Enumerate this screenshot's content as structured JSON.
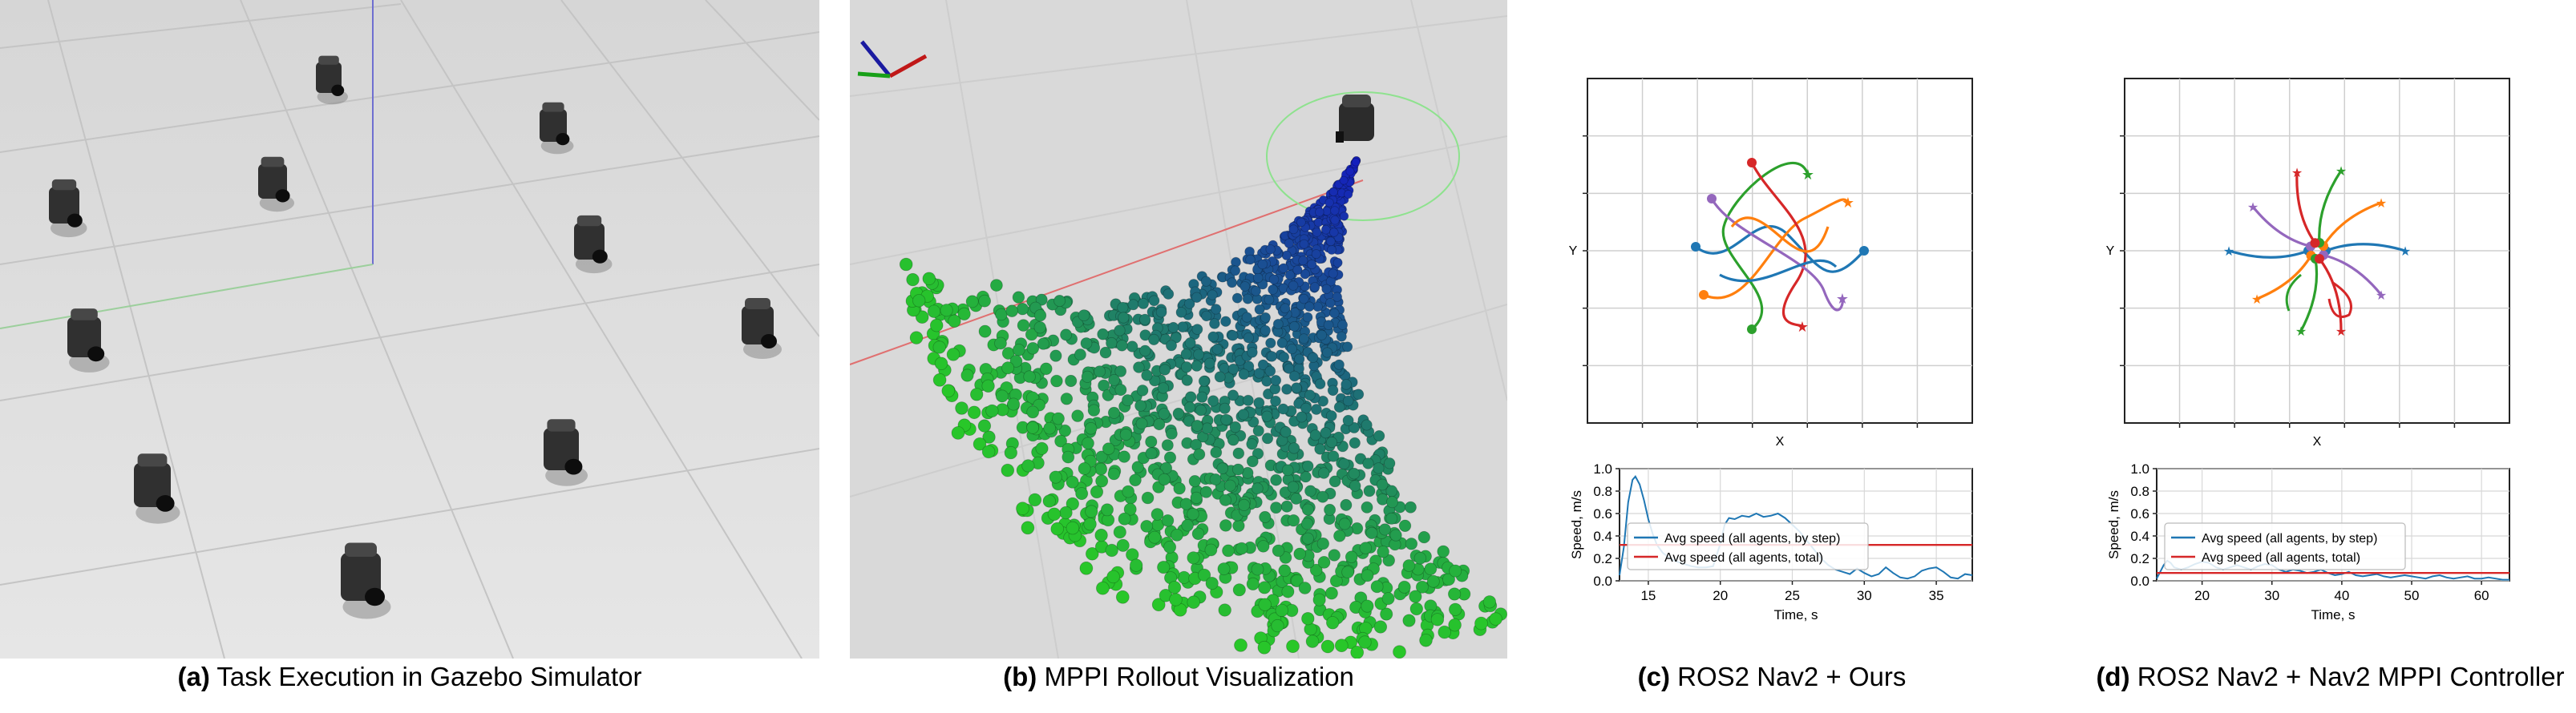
{
  "captions": {
    "a": {
      "tag": "(a)",
      "text": "Task Execution in Gazebo Simulator"
    },
    "b": {
      "tag": "(b)",
      "text": "MPPI Rollout Visualization"
    },
    "c": {
      "tag": "(c)",
      "text": "ROS2 Nav2 + Ours"
    },
    "d": {
      "tag": "(d)",
      "text": "ROS2 Nav2 + Nav2 MPPI Controller"
    }
  },
  "colors": {
    "blue": "#1f77b4",
    "orange": "#ff7f0e",
    "green": "#2ca02c",
    "red": "#d62728",
    "purple": "#9467bd",
    "gazebo_floor": "#dcdcdc",
    "rviz_bg": "#d9d9d9"
  },
  "chart_data": [
    {
      "type": "line",
      "panel": "c",
      "xlabel": "Time, s",
      "ylabel": "Speed, m/s",
      "xlim": [
        13,
        37.5
      ],
      "ylim": [
        0,
        1.0
      ],
      "xticks": [
        "15",
        "20",
        "25",
        "30",
        "35"
      ],
      "xtick_values": [
        15,
        20,
        25,
        30,
        35
      ],
      "yticks": [
        "0.0",
        "0.2",
        "0.4",
        "0.6",
        "0.8",
        "1.0"
      ],
      "ytick_values": [
        0,
        0.2,
        0.4,
        0.6,
        0.8,
        1.0
      ],
      "grid": true,
      "legend": "center-left",
      "series": [
        {
          "name": "Avg speed (all agents, by step)",
          "color": "#1f77b4",
          "x": [
            13,
            13.3,
            13.6,
            13.9,
            14.1,
            14.4,
            14.7,
            15.0,
            15.3,
            15.6,
            16.0,
            16.5,
            17.0,
            17.5,
            18.0,
            18.5,
            19.0,
            19.5,
            20.0,
            20.3,
            20.6,
            21.0,
            21.5,
            22.0,
            22.5,
            23.0,
            23.5,
            24.0,
            24.5,
            25.0,
            25.5,
            26.0,
            26.5,
            27.0,
            27.5,
            28.0,
            28.5,
            29.0,
            29.5,
            30.0,
            30.5,
            31.0,
            31.5,
            32.0,
            32.5,
            33.0,
            33.5,
            34.0,
            34.5,
            35.0,
            35.5,
            36.0,
            36.5,
            37.0,
            37.5
          ],
          "y": [
            0.05,
            0.3,
            0.7,
            0.9,
            0.93,
            0.86,
            0.72,
            0.55,
            0.42,
            0.32,
            0.25,
            0.2,
            0.17,
            0.15,
            0.13,
            0.12,
            0.12,
            0.13,
            0.33,
            0.5,
            0.56,
            0.55,
            0.58,
            0.57,
            0.6,
            0.57,
            0.58,
            0.6,
            0.56,
            0.5,
            0.44,
            0.36,
            0.28,
            0.2,
            0.14,
            0.1,
            0.08,
            0.06,
            0.11,
            0.07,
            0.04,
            0.06,
            0.12,
            0.07,
            0.03,
            0.02,
            0.04,
            0.09,
            0.11,
            0.12,
            0.08,
            0.03,
            0.02,
            0.06,
            0.05
          ]
        },
        {
          "name": "Avg speed (all agents, total)",
          "color": "#d62728",
          "x": [
            13,
            37.5
          ],
          "y": [
            0.32,
            0.32
          ]
        }
      ]
    },
    {
      "type": "line",
      "panel": "d",
      "xlabel": "Time, s",
      "ylabel": "Speed, m/s",
      "xlim": [
        13.5,
        64
      ],
      "ylim": [
        0,
        1.0
      ],
      "xticks": [
        "20",
        "30",
        "40",
        "50",
        "60"
      ],
      "xtick_values": [
        20,
        30,
        40,
        50,
        60
      ],
      "yticks": [
        "0.0",
        "0.2",
        "0.4",
        "0.6",
        "0.8",
        "1.0"
      ],
      "ytick_values": [
        0,
        0.2,
        0.4,
        0.6,
        0.8,
        1.0
      ],
      "grid": true,
      "legend": "center-left",
      "series": [
        {
          "name": "Avg speed (all agents, by step)",
          "color": "#1f77b4",
          "x": [
            13.5,
            14,
            14.5,
            15,
            15.5,
            16,
            17,
            18,
            19,
            20,
            21,
            22,
            23,
            24,
            25,
            26,
            27,
            28,
            29,
            30,
            31,
            32,
            33,
            34,
            35,
            36,
            37,
            38,
            39,
            40,
            41,
            42,
            43,
            44,
            45,
            46,
            47,
            48,
            49,
            50,
            51,
            52,
            53,
            54,
            55,
            56,
            57,
            58,
            59,
            60,
            61,
            62,
            63,
            64
          ],
          "y": [
            0.02,
            0.08,
            0.14,
            0.18,
            0.16,
            0.12,
            0.1,
            0.12,
            0.15,
            0.17,
            0.16,
            0.12,
            0.1,
            0.12,
            0.14,
            0.12,
            0.1,
            0.13,
            0.15,
            0.14,
            0.1,
            0.08,
            0.1,
            0.09,
            0.07,
            0.08,
            0.1,
            0.07,
            0.05,
            0.06,
            0.08,
            0.05,
            0.04,
            0.05,
            0.06,
            0.04,
            0.03,
            0.04,
            0.05,
            0.04,
            0.03,
            0.02,
            0.04,
            0.05,
            0.03,
            0.02,
            0.03,
            0.04,
            0.02,
            0.02,
            0.03,
            0.02,
            0.01,
            0.01
          ]
        },
        {
          "name": "Avg speed (all agents, total)",
          "color": "#d62728",
          "x": [
            13.5,
            64
          ],
          "y": [
            0.07,
            0.07
          ]
        }
      ]
    }
  ],
  "trajectory_plots": [
    {
      "panel": "c",
      "xlabel": "X",
      "ylabel": "Y"
    },
    {
      "panel": "d",
      "xlabel": "X",
      "ylabel": "Y"
    }
  ]
}
